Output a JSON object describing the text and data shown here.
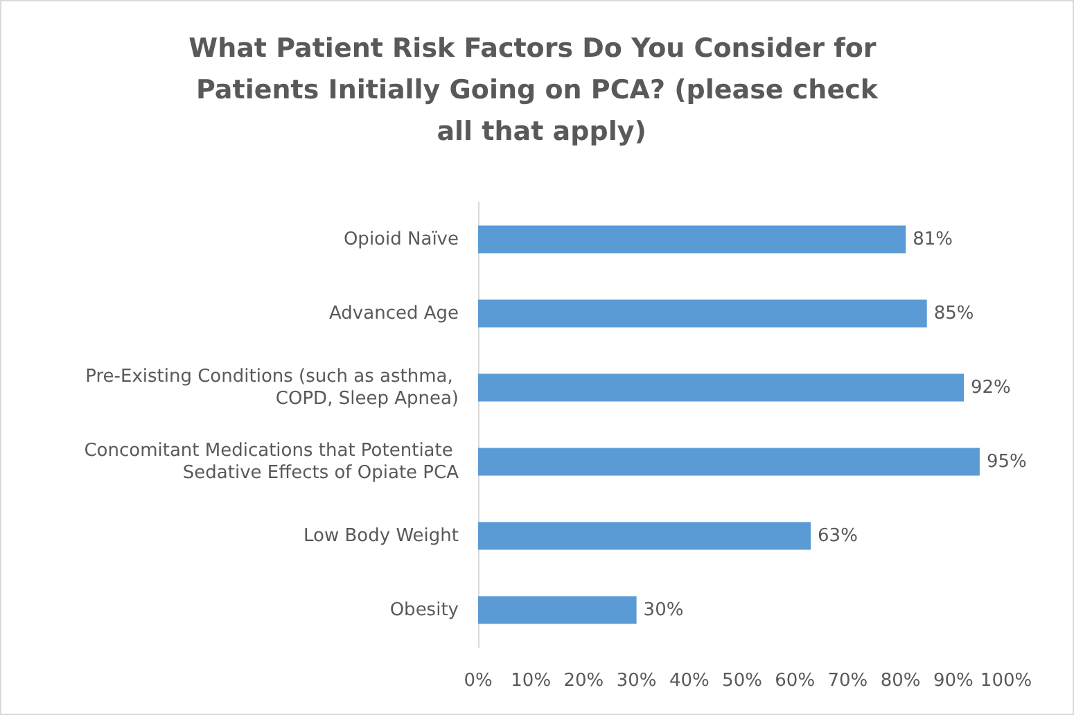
{
  "chart_data": {
    "type": "bar",
    "orientation": "horizontal",
    "title": "What Patient Risk Factors Do You Consider for Patients Initially Going on PCA? (please check all that apply)",
    "categories": [
      "Opioid Naïve",
      "Advanced Age",
      "Pre-Existing Conditions (such as asthma, COPD, Sleep Apnea)",
      "Concomitant Medications that Potentiate Sedative Effects of Opiate PCA",
      "Low Body Weight",
      "Obesity"
    ],
    "values": [
      81,
      85,
      92,
      95,
      63,
      30
    ],
    "color": "#5b9bd5",
    "value_labels": [
      "81%",
      "85%",
      "92%",
      "95%",
      "63%",
      "30%"
    ],
    "xlim": [
      0,
      100
    ],
    "xticks": [
      {
        "value": 0,
        "label": "0%"
      },
      {
        "value": 10,
        "label": "10%"
      },
      {
        "value": 20,
        "label": "20%"
      },
      {
        "value": 30,
        "label": "30%"
      },
      {
        "value": 40,
        "label": "40%"
      },
      {
        "value": 50,
        "label": "50%"
      },
      {
        "value": 60,
        "label": "60%"
      },
      {
        "value": 70,
        "label": "70%"
      },
      {
        "value": 80,
        "label": "80%"
      },
      {
        "value": 90,
        "label": "90%"
      },
      {
        "value": 100,
        "label": "100%"
      }
    ],
    "grid": false
  }
}
